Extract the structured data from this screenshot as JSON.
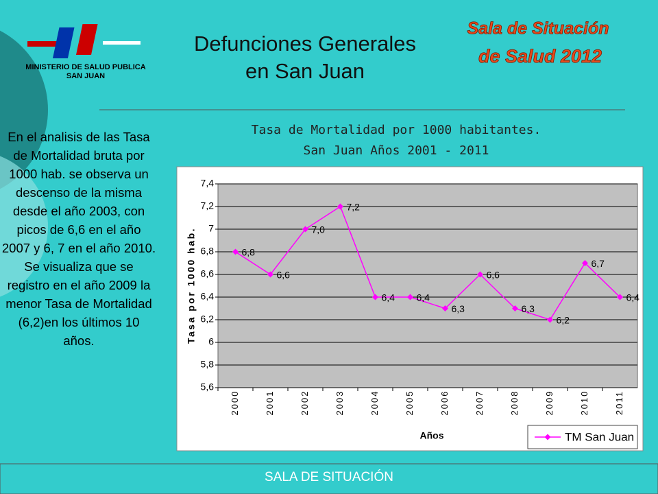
{
  "header": {
    "logo_lines": [
      "MINISTERIO DE SALUD PUBLICA",
      "SAN JUAN"
    ],
    "title_lines": [
      "Defunciones Generales",
      "en San Juan"
    ],
    "badge_lines": [
      "Sala de Situación",
      "de Salud 2012"
    ]
  },
  "sidebar": {
    "text": "En el analisis de las Tasa de Mortalidad bruta por 1000 hab. se observa un descenso de la misma desde el año 2003, con picos de 6,6 en el año 2007 y 6, 7 en el año 2010. Se visualiza que se registro en el año 2009 la menor Tasa de Mortalidad (6,2)en los últimos 10 años."
  },
  "footer": {
    "text": "SALA DE SITUACIÓN"
  },
  "chart_data": {
    "type": "line",
    "title": "Tasa de Mortalidad por 1000 habitantes.",
    "subtitle": "San Juan Años 2001 - 2011",
    "x_label": "Años",
    "y_label": "Tasa por 1000 hab.",
    "categories": [
      "2000",
      "2001",
      "2002",
      "2003",
      "2004",
      "2005",
      "2006",
      "2007",
      "2008",
      "2009",
      "2010",
      "2011"
    ],
    "series": [
      {
        "name": "TM San Juan",
        "color": "#ff00ff",
        "values": [
          6.8,
          6.6,
          7.0,
          7.2,
          6.4,
          6.4,
          6.3,
          6.6,
          6.3,
          6.2,
          6.7,
          6.4
        ],
        "value_labels": [
          "6,8",
          "6,6",
          "7,0",
          "7,2",
          "6,4",
          "6,4",
          "6,3",
          "6,6",
          "6,3",
          "6,2",
          "6,7",
          "6,4"
        ]
      }
    ],
    "ylim": [
      5.6,
      7.4
    ],
    "yticks": [
      {
        "value": 5.6,
        "label": "5,6"
      },
      {
        "value": 5.8,
        "label": "5,8"
      },
      6,
      {
        "value": 6.2,
        "label": "6,2"
      },
      {
        "value": 6.4,
        "label": "6,4"
      },
      {
        "value": 6.6,
        "label": "6,6"
      },
      {
        "value": 6.8,
        "label": "6,8"
      },
      7,
      {
        "value": 7.2,
        "label": "7,2"
      },
      {
        "value": 7.4,
        "label": "7,4"
      }
    ],
    "grid": true,
    "legend": "bottom-right"
  }
}
